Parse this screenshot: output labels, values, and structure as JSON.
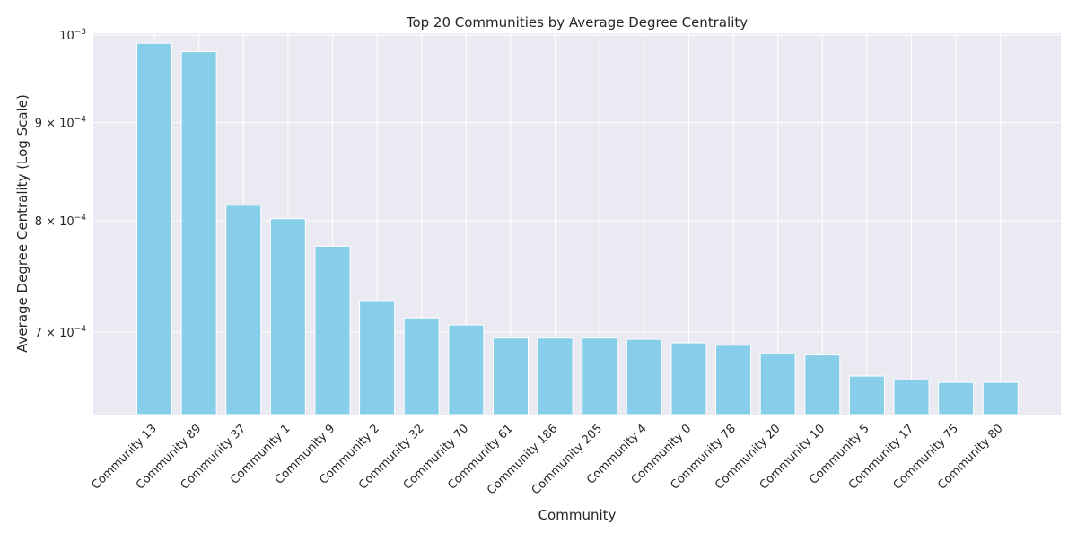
{
  "chart_data": {
    "type": "bar",
    "title": "Top 20 Communities by Average Degree Centrality",
    "xlabel": "Community",
    "ylabel": "Average Degree Centrality (Log Scale)",
    "yscale": "log",
    "ylim": [
      0.000634,
      0.001002
    ],
    "grid": true,
    "bar_color": "#87CEEB",
    "background_color": "#EAEAF2",
    "grid_color": "#FFFFFF",
    "categories": [
      "Community 13",
      "Community 89",
      "Community 37",
      "Community 1",
      "Community 9",
      "Community 2",
      "Community 32",
      "Community 70",
      "Community 61",
      "Community 186",
      "Community 205",
      "Community 4",
      "Community 0",
      "Community 78",
      "Community 20",
      "Community 10",
      "Community 5",
      "Community 17",
      "Community 75",
      "Community 80"
    ],
    "values": [
      0.00099,
      0.00098,
      0.000815,
      0.000802,
      0.000776,
      0.000727,
      0.000712,
      0.000706,
      0.000695,
      0.000695,
      0.000695,
      0.000694,
      0.000691,
      0.000689,
      0.000682,
      0.000681,
      0.000664,
      0.000661,
      0.000659,
      0.000659
    ],
    "yticks": [
      {
        "value": 0.0007,
        "mantissa": "7 × 10",
        "exp": "−4"
      },
      {
        "value": 0.0008,
        "mantissa": "8 × 10",
        "exp": "−4"
      },
      {
        "value": 0.0009,
        "mantissa": "9 × 10",
        "exp": "−4"
      },
      {
        "value": 0.001,
        "mantissa": "10",
        "exp": "−3"
      }
    ]
  }
}
